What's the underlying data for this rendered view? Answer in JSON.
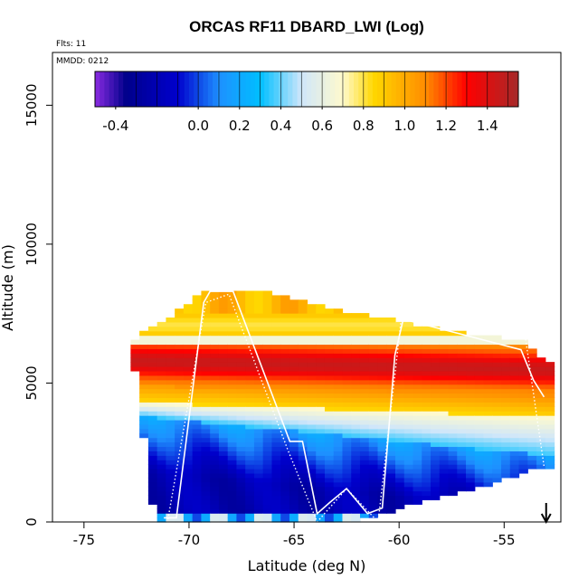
{
  "chart_data": {
    "type": "heatmap",
    "title": "ORCAS RF11 DBARD_LWI (Log)",
    "flights_label": "Flts: 11",
    "date_label": "MMDD: 0212",
    "xlabel": "Latitude (deg N)",
    "ylabel": "Altitude (m)",
    "xlim": [
      -76.5,
      -52.3
    ],
    "ylim": [
      0,
      16900
    ],
    "xticks": [
      -75,
      -70,
      -65,
      -60,
      -55
    ],
    "xtick_labels": [
      "-75",
      "-70",
      "-65",
      "-60",
      "-55"
    ],
    "yticks": [
      0,
      5000,
      10000,
      15000
    ],
    "ytick_labels": [
      "0",
      "5000",
      "10000",
      "15000"
    ],
    "colorbar": {
      "min": -0.5,
      "max": 1.55,
      "ticks": [
        -0.4,
        0.0,
        0.2,
        0.4,
        0.6,
        0.8,
        1.0,
        1.2,
        1.4
      ],
      "tick_labels": [
        "-0.4",
        "0.0",
        "0.2",
        "0.4",
        "0.6",
        "0.8",
        "1.0",
        "1.2",
        "1.4"
      ],
      "stops": [
        {
          "v": -0.5,
          "c": "#8a2be2"
        },
        {
          "v": -0.35,
          "c": "#00008b"
        },
        {
          "v": -0.1,
          "c": "#0000cd"
        },
        {
          "v": 0.1,
          "c": "#1e90ff"
        },
        {
          "v": 0.3,
          "c": "#00bfff"
        },
        {
          "v": 0.5,
          "c": "#cfe6fa"
        },
        {
          "v": 0.7,
          "c": "#fffacd"
        },
        {
          "v": 0.85,
          "c": "#ffd700"
        },
        {
          "v": 1.1,
          "c": "#ff8c00"
        },
        {
          "v": 1.3,
          "c": "#ff0000"
        },
        {
          "v": 1.55,
          "c": "#a52a2a"
        }
      ]
    },
    "field_extent": {
      "top_altitude_m": [
        [
          -73.0,
          6400
        ],
        [
          -70.5,
          7600
        ],
        [
          -69.5,
          8300
        ],
        [
          -66.5,
          8300
        ],
        [
          -62.0,
          7500
        ],
        [
          -57.5,
          6900
        ],
        [
          -54.0,
          6500
        ],
        [
          -53.2,
          5800
        ]
      ],
      "bottom_altitude_m": [
        [
          -71.5,
          0
        ],
        [
          -64.0,
          0
        ],
        [
          -62.0,
          0
        ],
        [
          -58.5,
          800
        ],
        [
          -56.0,
          1300
        ],
        [
          -54.0,
          1800
        ],
        [
          -53.2,
          2000
        ]
      ],
      "left_boundary": [
        [
          -73.0,
          6400
        ],
        [
          -72.5,
          5200
        ],
        [
          -72.3,
          3800
        ],
        [
          -72.0,
          2200
        ],
        [
          -71.8,
          800
        ],
        [
          -71.5,
          0
        ]
      ]
    },
    "field_layers": [
      {
        "name": "upper_cloud_top",
        "alt_m": 7700,
        "value": 1.0
      },
      {
        "name": "upper_orange",
        "alt_m": 6800,
        "value": 1.0
      },
      {
        "name": "white_gap",
        "alt_m": 6550,
        "value": 0.65
      },
      {
        "name": "red_core",
        "alt_m": 5800,
        "value": 1.4
      },
      {
        "name": "orange_red",
        "alt_m": 4800,
        "value": 1.2
      },
      {
        "name": "yellow_band",
        "alt_m": 4100,
        "value": 0.85
      },
      {
        "name": "blue_lower",
        "alt_m": 2800,
        "value": 0.1
      },
      {
        "name": "dark_blue",
        "alt_m": 1200,
        "value": -0.2
      },
      {
        "name": "near_surface",
        "alt_m": 0,
        "value": 0.3
      }
    ],
    "flight_track_white": [
      [
        -71.2,
        150
      ],
      [
        -70.6,
        150
      ],
      [
        -69.3,
        7900
      ],
      [
        -69.0,
        8300
      ],
      [
        -67.9,
        8300
      ],
      [
        -65.2,
        2900
      ],
      [
        -64.6,
        2900
      ],
      [
        -63.9,
        300
      ],
      [
        -63.3,
        700
      ],
      [
        -62.5,
        1200
      ],
      [
        -61.5,
        300
      ],
      [
        -60.8,
        500
      ],
      [
        -60.2,
        6000
      ],
      [
        -59.8,
        7300
      ],
      [
        -54.2,
        6200
      ],
      [
        -53.6,
        5100
      ],
      [
        -53.1,
        4500
      ]
    ],
    "flight_track_dotted": [
      [
        -71.0,
        100
      ],
      [
        -69.2,
        7900
      ],
      [
        -68.1,
        8200
      ],
      [
        -65.3,
        2600
      ],
      [
        -63.9,
        0
      ],
      [
        -62.5,
        1200
      ],
      [
        -61.0,
        0
      ],
      [
        -59.9,
        7300
      ],
      [
        -54.0,
        6700
      ],
      [
        -53.1,
        2000
      ]
    ],
    "annotation_arrow": {
      "x_deg": -53.0,
      "direction": "down"
    }
  }
}
